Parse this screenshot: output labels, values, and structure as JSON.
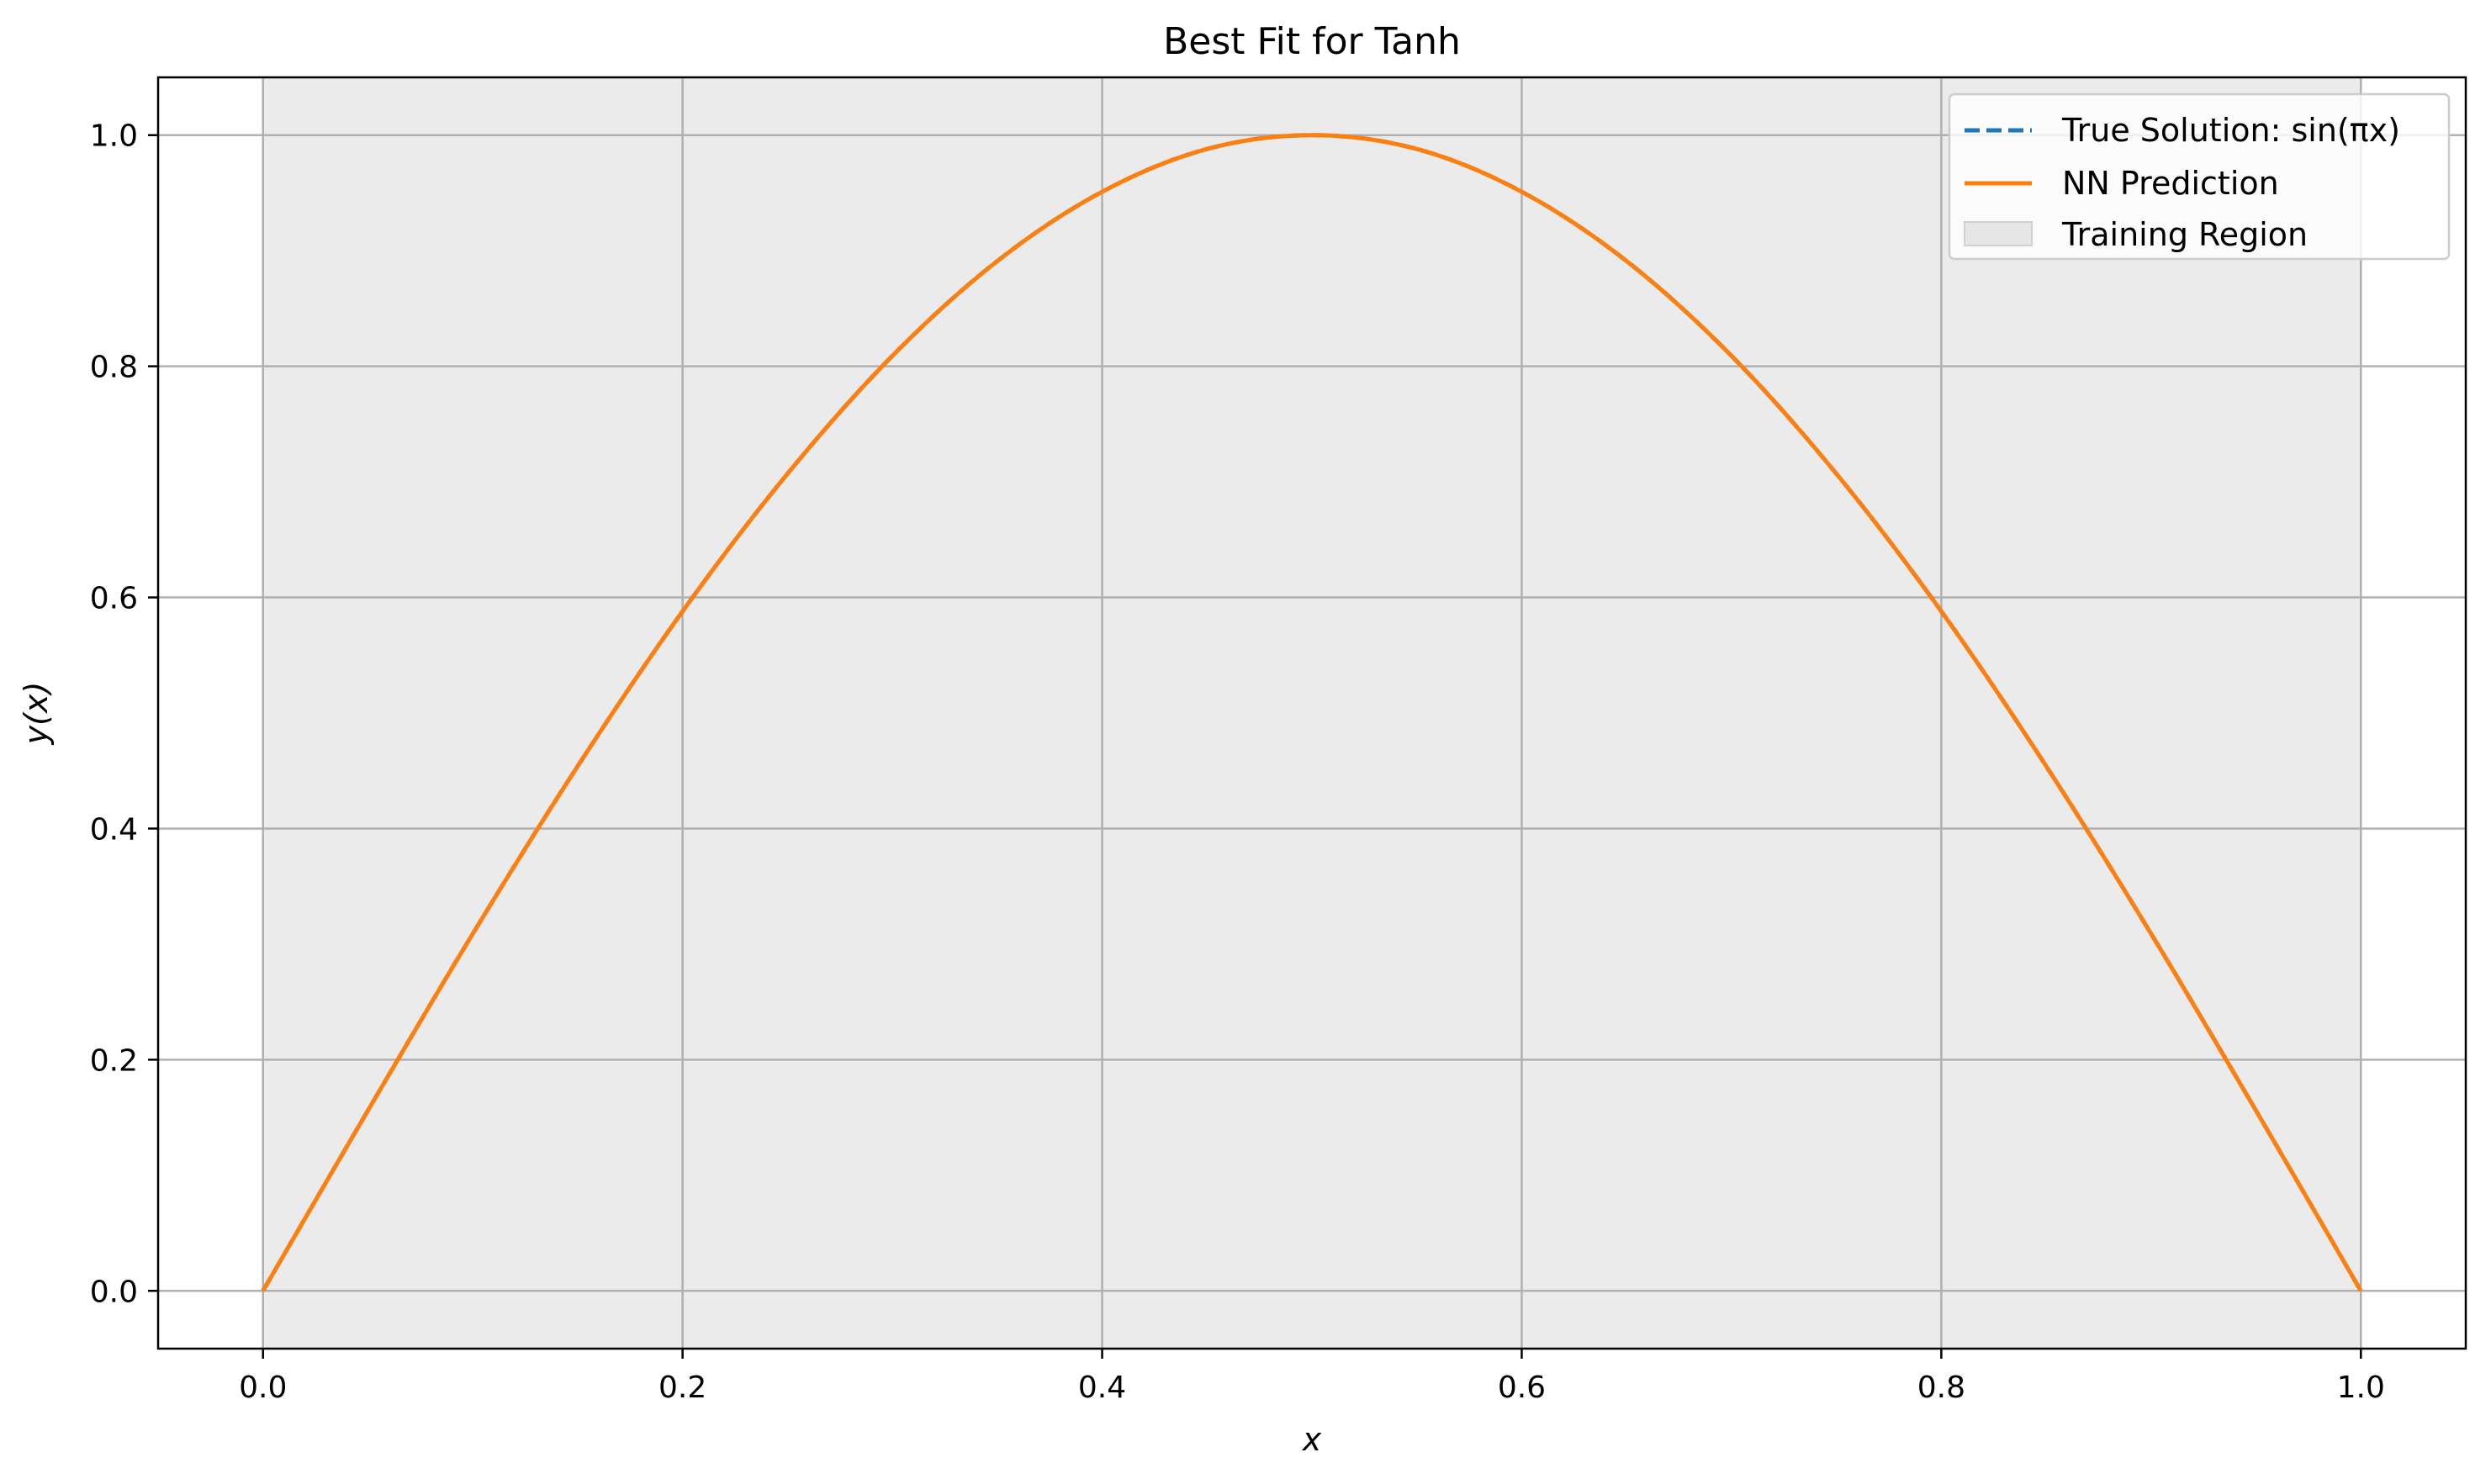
{
  "chart_data": {
    "type": "line",
    "title": "Best Fit for Tanh",
    "xlabel": "x",
    "ylabel": "y(x)",
    "xlim": [
      -0.05,
      1.05
    ],
    "ylim": [
      -0.05,
      1.05
    ],
    "xticks": [
      0.0,
      0.2,
      0.4,
      0.6,
      0.8,
      1.0
    ],
    "xtick_labels": [
      "0.0",
      "0.2",
      "0.4",
      "0.6",
      "0.8",
      "1.0"
    ],
    "yticks": [
      0.0,
      0.2,
      0.4,
      0.6,
      0.8,
      1.0
    ],
    "ytick_labels": [
      "0.0",
      "0.2",
      "0.4",
      "0.6",
      "0.8",
      "1.0"
    ],
    "grid": true,
    "legend_position": "top-right",
    "shaded_region": {
      "name": "Training Region",
      "x_range": [
        0.0,
        1.0
      ],
      "color": "#e6e6e6"
    },
    "series": [
      {
        "name": "True Solution: sin(πx)",
        "style": "dashed",
        "color": "#1f77b4",
        "x": [
          0.0,
          0.05,
          0.1,
          0.15,
          0.2,
          0.25,
          0.3,
          0.35,
          0.4,
          0.45,
          0.5,
          0.55,
          0.6,
          0.65,
          0.7,
          0.75,
          0.8,
          0.85,
          0.9,
          0.95,
          1.0
        ],
        "y": [
          0.0,
          0.156,
          0.309,
          0.454,
          0.588,
          0.707,
          0.809,
          0.891,
          0.951,
          0.988,
          1.0,
          0.988,
          0.951,
          0.891,
          0.809,
          0.707,
          0.588,
          0.454,
          0.309,
          0.156,
          0.0
        ]
      },
      {
        "name": "NN Prediction",
        "style": "solid",
        "color": "#ff7f0e",
        "x": [
          0.0,
          0.05,
          0.1,
          0.15,
          0.2,
          0.25,
          0.3,
          0.35,
          0.4,
          0.45,
          0.5,
          0.55,
          0.6,
          0.65,
          0.7,
          0.75,
          0.8,
          0.85,
          0.9,
          0.95,
          1.0
        ],
        "y": [
          0.0,
          0.156,
          0.309,
          0.454,
          0.588,
          0.707,
          0.809,
          0.891,
          0.951,
          0.988,
          1.0,
          0.988,
          0.951,
          0.891,
          0.809,
          0.707,
          0.588,
          0.454,
          0.309,
          0.156,
          0.0
        ]
      }
    ]
  }
}
